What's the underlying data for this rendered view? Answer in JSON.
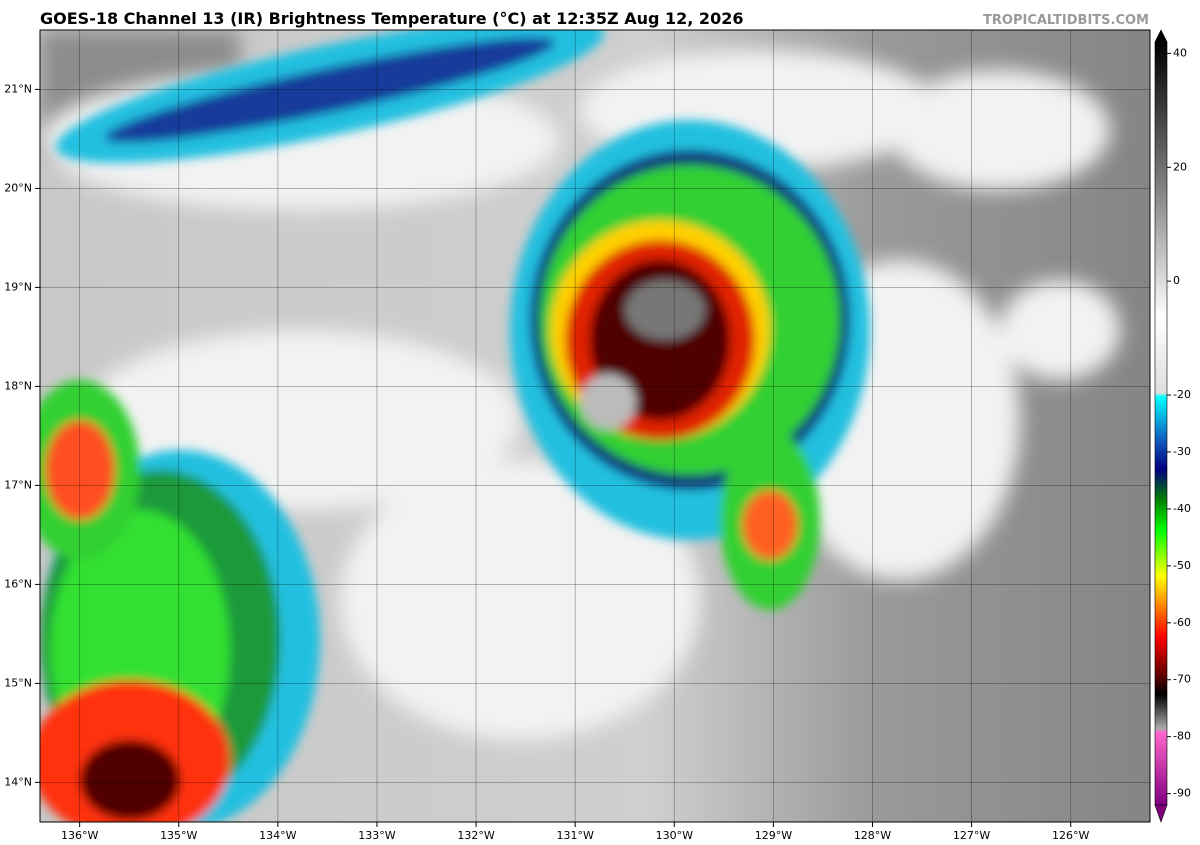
{
  "header": {
    "title": "GOES-18 Channel 13 (IR) Brightness Temperature (°C) at 12:35Z Aug 12, 2026",
    "watermark": "TROPICALTIDBITS.COM"
  },
  "map": {
    "xlim": [
      -136.4,
      -125.2
    ],
    "ylim": [
      13.6,
      21.6
    ],
    "xticks": [
      {
        "value": -136,
        "label": "136°W"
      },
      {
        "value": -135,
        "label": "135°W"
      },
      {
        "value": -134,
        "label": "134°W"
      },
      {
        "value": -133,
        "label": "133°W"
      },
      {
        "value": -132,
        "label": "132°W"
      },
      {
        "value": -131,
        "label": "131°W"
      },
      {
        "value": -130,
        "label": "130°W"
      },
      {
        "value": -129,
        "label": "129°W"
      },
      {
        "value": -128,
        "label": "128°W"
      },
      {
        "value": -127,
        "label": "127°W"
      },
      {
        "value": -126,
        "label": "126°W"
      }
    ],
    "yticks": [
      {
        "value": 14,
        "label": "14°N"
      },
      {
        "value": 15,
        "label": "15°N"
      },
      {
        "value": 16,
        "label": "16°N"
      },
      {
        "value": 17,
        "label": "17°N"
      },
      {
        "value": 18,
        "label": "18°N"
      },
      {
        "value": 19,
        "label": "19°N"
      },
      {
        "value": 20,
        "label": "20°N"
      },
      {
        "value": 21,
        "label": "21°N"
      }
    ],
    "grid": true
  },
  "colorbar": {
    "lim": [
      -92,
      42
    ],
    "ticks": [
      40,
      20,
      0,
      -20,
      -30,
      -40,
      -50,
      -60,
      -70,
      -80,
      -90
    ]
  }
}
